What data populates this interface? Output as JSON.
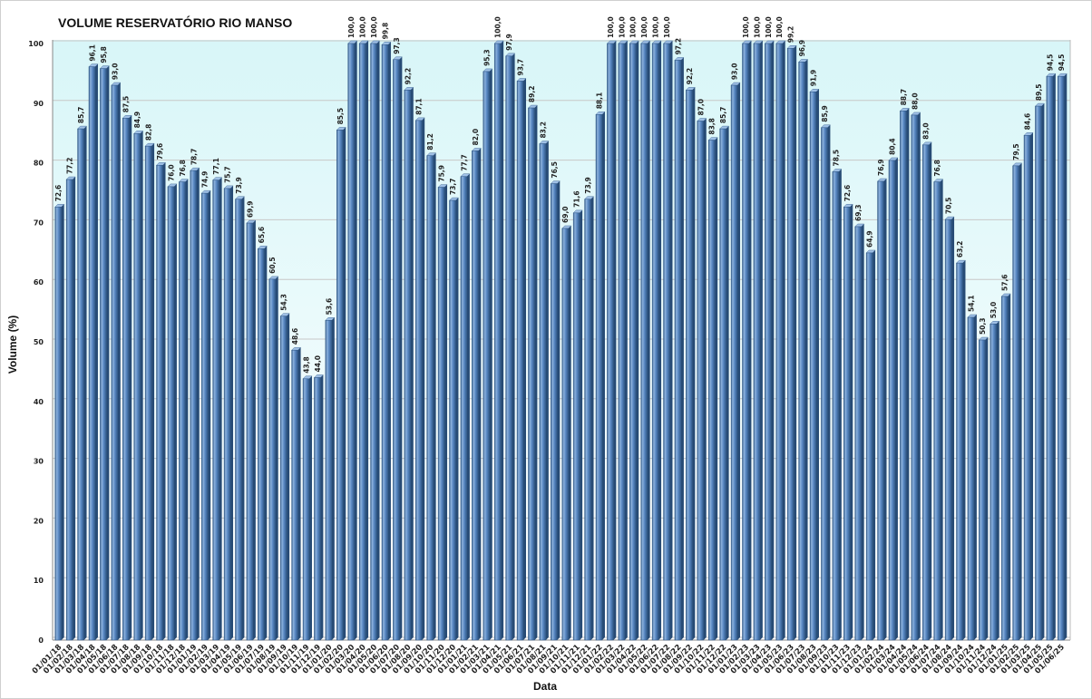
{
  "chart_data": {
    "type": "bar",
    "title": "VOLUME RESERVATÓRIO RIO MANSO",
    "xlabel": "Data",
    "ylabel": "Volume (%)",
    "ylim": [
      0,
      100
    ],
    "yticks": [
      0,
      10,
      20,
      30,
      40,
      50,
      60,
      70,
      80,
      90,
      100
    ],
    "grid": true,
    "legend": "none",
    "colors": {
      "bar": "#4f81bd",
      "bar_dark": "#2f5786",
      "bar_light": "#8eb3dd",
      "plot_bg_top": "#d8f6f8",
      "plot_bg_bottom": "#ffffff",
      "grid": "#c8c8c8"
    },
    "categories": [
      "01/01/18",
      "01/02/18",
      "01/03/18",
      "01/04/18",
      "01/05/18",
      "01/06/18",
      "01/07/18",
      "01/08/18",
      "01/09/18",
      "01/10/18",
      "01/11/18",
      "01/12/18",
      "01/01/19",
      "01/02/19",
      "01/03/19",
      "01/04/19",
      "01/05/19",
      "01/06/19",
      "01/07/19",
      "01/08/19",
      "01/09/19",
      "01/10/19",
      "01/11/19",
      "01/12/19",
      "01/01/20",
      "01/02/20",
      "01/03/20",
      "01/04/20",
      "01/05/20",
      "01/06/20",
      "01/07/20",
      "01/08/20",
      "01/09/20",
      "01/10/20",
      "01/11/20",
      "01/12/20",
      "01/01/21",
      "01/02/21",
      "01/03/21",
      "01/04/21",
      "01/05/21",
      "01/06/21",
      "01/07/21",
      "01/08/21",
      "01/09/21",
      "01/10/21",
      "01/11/21",
      "01/12/21",
      "01/01/22",
      "01/02/22",
      "01/03/22",
      "01/04/22",
      "01/05/22",
      "01/06/22",
      "01/07/22",
      "01/08/22",
      "01/09/22",
      "01/10/22",
      "01/11/22",
      "01/12/22",
      "01/01/23",
      "01/02/23",
      "01/03/23",
      "01/04/23",
      "01/05/23",
      "01/06/23",
      "01/07/23",
      "01/08/23",
      "01/09/23",
      "01/10/23",
      "01/11/23",
      "01/12/23",
      "01/01/24",
      "01/02/24",
      "01/03/24",
      "01/04/24",
      "01/05/24",
      "01/06/24",
      "01/07/24",
      "01/08/24",
      "01/09/24",
      "01/10/24",
      "01/11/24",
      "01/12/24",
      "01/01/25",
      "01/02/25",
      "01/03/25",
      "01/04/25",
      "01/05/25",
      "01/06/25"
    ],
    "values": [
      72.6,
      77.2,
      85.7,
      96.1,
      95.8,
      93.0,
      87.5,
      84.9,
      82.8,
      79.6,
      76.0,
      76.8,
      78.7,
      74.9,
      77.1,
      75.7,
      73.9,
      69.9,
      65.6,
      60.5,
      54.3,
      48.6,
      43.8,
      44.0,
      53.6,
      85.5,
      100.0,
      100.0,
      100.0,
      99.8,
      97.3,
      92.2,
      87.1,
      81.2,
      75.9,
      73.7,
      77.7,
      82.0,
      95.3,
      100.0,
      97.9,
      93.7,
      89.2,
      83.2,
      76.5,
      69.0,
      71.6,
      73.9,
      88.1,
      100.0,
      100.0,
      100.0,
      100.0,
      100.0,
      100.0,
      97.2,
      92.2,
      87.0,
      83.8,
      85.7,
      93.0,
      100.0,
      100.0,
      100.0,
      100.0,
      99.2,
      96.9,
      91.9,
      85.9,
      78.5,
      72.6,
      69.3,
      64.9,
      76.9,
      80.4,
      88.7,
      88.0,
      83.0,
      76.8,
      70.5,
      63.2,
      54.1,
      50.3,
      53.0,
      57.6,
      79.5,
      84.6,
      89.5,
      94.5,
      94.5
    ],
    "value_labels": [
      "72,6",
      "77,2",
      "85,7",
      "96,1",
      "95,8",
      "93,0",
      "87,5",
      "84,9",
      "82,8",
      "79,6",
      "76,0",
      "76,8",
      "78,7",
      "74,9",
      "77,1",
      "75,7",
      "73,9",
      "69,9",
      "65,6",
      "60,5",
      "54,3",
      "48,6",
      "43,8",
      "44,0",
      "53,6",
      "85,5",
      "100,0",
      "100,0",
      "100,0",
      "99,8",
      "97,3",
      "92,2",
      "87,1",
      "81,2",
      "75,9",
      "73,7",
      "77,7",
      "82,0",
      "95,3",
      "100,0",
      "97,9",
      "93,7",
      "89,2",
      "83,2",
      "76,5",
      "69,0",
      "71,6",
      "73,9",
      "88,1",
      "100,0",
      "100,0",
      "100,0",
      "100,0",
      "100,0",
      "100,0",
      "97,2",
      "92,2",
      "87,0",
      "83,8",
      "85,7",
      "93,0",
      "100,0",
      "100,0",
      "100,0",
      "100,0",
      "99,2",
      "96,9",
      "91,9",
      "85,9",
      "78,5",
      "72,6",
      "69,3",
      "64,9",
      "76,9",
      "80,4",
      "88,7",
      "88,0",
      "83,0",
      "76,8",
      "70,5",
      "63,2",
      "54,1",
      "50,3",
      "53,0",
      "57,6",
      "79,5",
      "84,6",
      "89,5",
      "94,5",
      "94,5"
    ]
  }
}
